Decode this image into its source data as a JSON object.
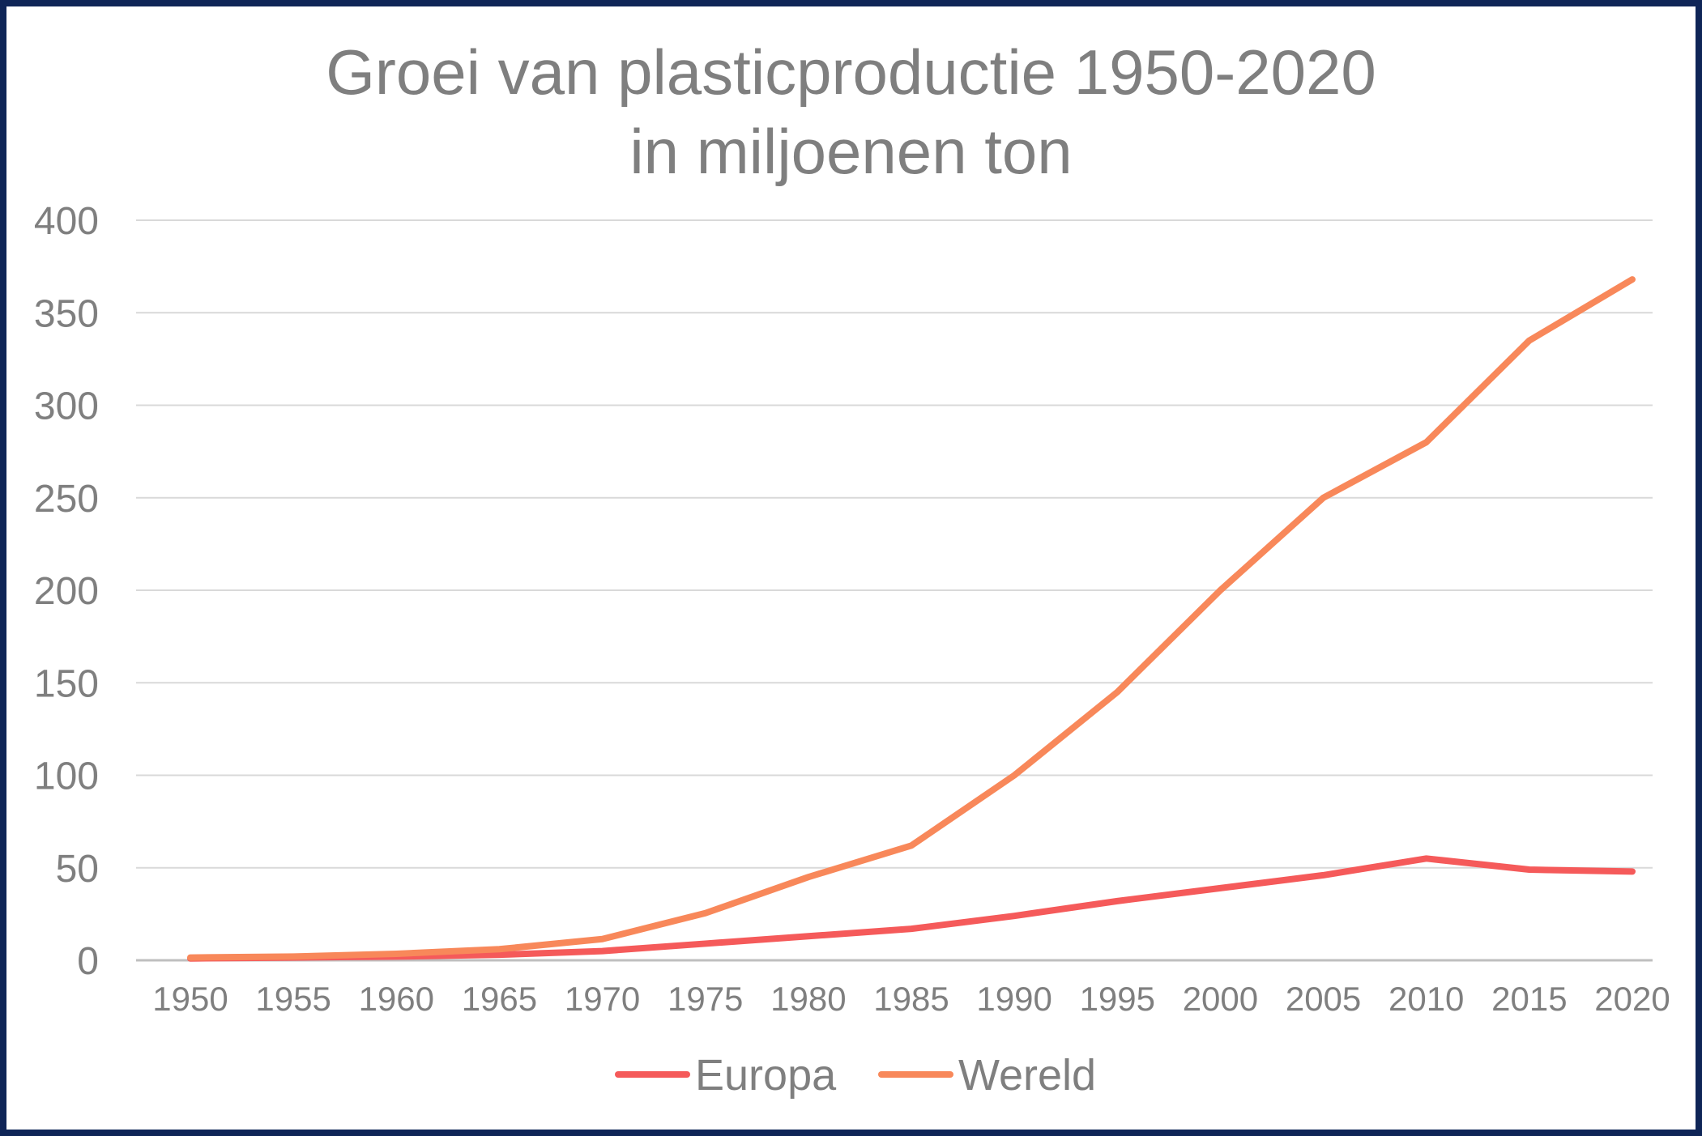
{
  "chart_data": {
    "type": "line",
    "title": [
      "Groei van plasticproductie 1950-2020",
      "in miljoenen ton"
    ],
    "xlabel": "",
    "ylabel": "",
    "categories": [
      "1950",
      "1955",
      "1960",
      "1965",
      "1970",
      "1975",
      "1980",
      "1985",
      "1990",
      "1995",
      "2000",
      "2005",
      "2010",
      "2015",
      "2020"
    ],
    "y_ticks": [
      "0",
      "50",
      "100",
      "150",
      "200",
      "250",
      "300",
      "350",
      "400"
    ],
    "ylim": [
      0,
      400
    ],
    "grid": true,
    "legend_position": "bottom",
    "series": [
      {
        "name": "Europa",
        "color": "#f55a5a",
        "values": [
          1,
          1.5,
          2,
          3,
          5,
          9,
          13,
          17,
          24,
          32,
          39,
          46,
          55,
          49,
          48
        ]
      },
      {
        "name": "Wereld",
        "color": "#f8885a",
        "values": [
          1.5,
          2,
          3.5,
          6,
          11.5,
          25.5,
          45,
          62,
          100,
          145,
          200,
          250,
          280,
          335,
          368
        ]
      }
    ]
  }
}
